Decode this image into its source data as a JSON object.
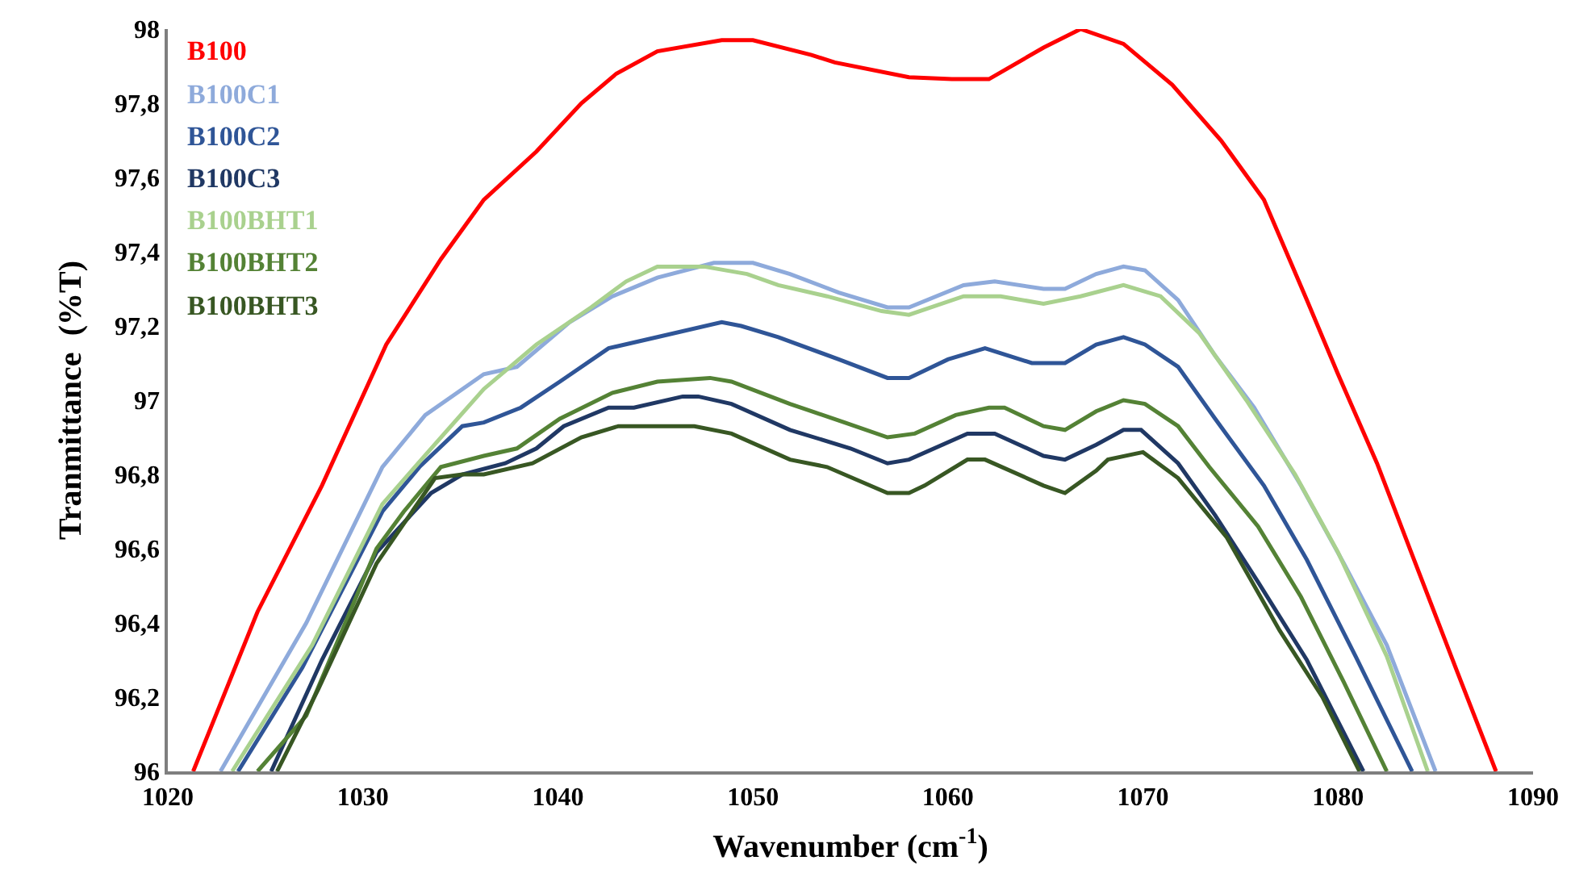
{
  "chart_data": {
    "type": "line",
    "xlabel": "Wavenumber (cm$^{-1}$)",
    "ylabel": "Tranmittance  (%T)",
    "xlim": [
      1020,
      1090
    ],
    "xticks": [
      1020,
      1030,
      1040,
      1050,
      1060,
      1070,
      1080,
      1090
    ],
    "ylim": [
      96,
      98
    ],
    "yticks": [
      96,
      {
        "value": 96.2,
        "label": "96,2"
      },
      {
        "value": 96.4,
        "label": "96,4"
      },
      {
        "value": 96.6,
        "label": "96,6"
      },
      {
        "value": 96.8,
        "label": "96,8"
      },
      97,
      {
        "value": 97.2,
        "label": "97,2"
      },
      {
        "value": 97.4,
        "label": "97,4"
      },
      {
        "value": 97.6,
        "label": "97,6"
      },
      {
        "value": 97.8,
        "label": "97,8"
      },
      98
    ],
    "grid": false,
    "legend": "top left",
    "marker": "none",
    "line_style": "solid",
    "series": [
      {
        "name": "B100",
        "color": "#ff0000",
        "x": [
          1021.3,
          1024.6,
          1027.9,
          1031.2,
          1034.0,
          1036.2,
          1038.9,
          1041.2,
          1043.0,
          1045.1,
          1048.4,
          1050.0,
          1053.0,
          1054.2,
          1058.0,
          1060.2,
          1062.1,
          1064.9,
          1066.8,
          1069.0,
          1071.5,
          1074.0,
          1076.2,
          1078.4,
          1080.0,
          1082.0,
          1083.9,
          1086.1,
          1088.1
        ],
        "values": [
          96.0,
          96.43,
          96.77,
          97.15,
          97.38,
          97.54,
          97.67,
          97.8,
          97.88,
          97.94,
          97.97,
          97.97,
          97.93,
          97.91,
          97.87,
          97.865,
          97.865,
          97.95,
          98.0,
          97.96,
          97.85,
          97.7,
          97.54,
          97.27,
          97.07,
          96.83,
          96.57,
          96.27,
          96.0
        ]
      },
      {
        "name": "B100C1",
        "color": "#8eaadb",
        "x": [
          1022.7,
          1027.1,
          1031.0,
          1033.2,
          1036.2,
          1037.9,
          1040.6,
          1042.8,
          1045.1,
          1048.0,
          1050.0,
          1051.9,
          1054.4,
          1056.9,
          1058.0,
          1060.8,
          1062.4,
          1064.9,
          1066.0,
          1067.6,
          1069.0,
          1070.1,
          1071.8,
          1073.7,
          1075.7,
          1078.1,
          1080.3,
          1082.5,
          1085.0
        ],
        "values": [
          96.0,
          96.4,
          96.82,
          96.96,
          97.07,
          97.09,
          97.21,
          97.28,
          97.33,
          97.37,
          97.37,
          97.34,
          97.29,
          97.25,
          97.25,
          97.31,
          97.32,
          97.3,
          97.3,
          97.34,
          97.36,
          97.35,
          97.27,
          97.12,
          96.98,
          96.77,
          96.56,
          96.34,
          96.0
        ]
      },
      {
        "name": "B100C2",
        "color": "#2f5597",
        "x": [
          1023.6,
          1026.9,
          1031.0,
          1032.9,
          1035.1,
          1036.2,
          1038.1,
          1040.1,
          1042.6,
          1045.1,
          1048.4,
          1049.4,
          1051.3,
          1054.4,
          1056.9,
          1058.0,
          1060.0,
          1061.9,
          1064.3,
          1066.0,
          1067.6,
          1069.0,
          1070.1,
          1071.8,
          1073.7,
          1076.2,
          1078.4,
          1080.9,
          1083.8
        ],
        "values": [
          96.0,
          96.28,
          96.7,
          96.82,
          96.93,
          96.94,
          96.98,
          97.05,
          97.14,
          97.17,
          97.21,
          97.2,
          97.17,
          97.11,
          97.06,
          97.06,
          97.11,
          97.14,
          97.1,
          97.1,
          97.15,
          97.17,
          97.15,
          97.09,
          96.95,
          96.77,
          96.57,
          96.31,
          96.0
        ]
      },
      {
        "name": "B100C3",
        "color": "#203864",
        "x": [
          1025.3,
          1027.9,
          1030.7,
          1033.5,
          1035.1,
          1037.3,
          1038.9,
          1040.3,
          1042.6,
          1043.9,
          1046.4,
          1047.2,
          1048.9,
          1051.9,
          1055.0,
          1056.9,
          1058.0,
          1061.0,
          1062.4,
          1064.9,
          1066.0,
          1067.6,
          1069.0,
          1069.9,
          1071.8,
          1073.7,
          1075.9,
          1078.4,
          1081.3
        ],
        "values": [
          96.0,
          96.3,
          96.59,
          96.75,
          96.8,
          96.83,
          96.87,
          96.93,
          96.98,
          96.98,
          97.01,
          97.01,
          96.99,
          96.92,
          96.87,
          96.83,
          96.84,
          96.91,
          96.91,
          96.85,
          96.84,
          96.88,
          96.92,
          96.92,
          96.83,
          96.69,
          96.51,
          96.3,
          96.0
        ]
      },
      {
        "name": "B100BHT1",
        "color": "#a9d18e",
        "x": [
          1023.3,
          1027.4,
          1031.0,
          1033.5,
          1036.2,
          1038.9,
          1041.7,
          1043.5,
          1045.1,
          1047.5,
          1049.7,
          1051.3,
          1053.8,
          1056.6,
          1058.0,
          1060.8,
          1062.7,
          1064.9,
          1066.8,
          1069.0,
          1070.9,
          1072.9,
          1075.3,
          1077.8,
          1080.0,
          1082.5,
          1084.6
        ],
        "values": [
          96.0,
          96.34,
          96.72,
          96.87,
          97.03,
          97.15,
          97.25,
          97.32,
          97.36,
          97.36,
          97.34,
          97.31,
          97.28,
          97.24,
          97.23,
          97.28,
          97.28,
          97.26,
          97.28,
          97.31,
          97.28,
          97.18,
          97.0,
          96.8,
          96.59,
          96.31,
          96.0
        ]
      },
      {
        "name": "B100BHT2",
        "color": "#548235",
        "x": [
          1024.6,
          1027.1,
          1030.7,
          1032.1,
          1034.0,
          1036.2,
          1037.9,
          1040.1,
          1042.8,
          1045.1,
          1047.8,
          1048.9,
          1051.9,
          1054.7,
          1056.9,
          1058.3,
          1060.4,
          1062.1,
          1062.9,
          1064.9,
          1066.0,
          1067.6,
          1069.0,
          1070.1,
          1071.8,
          1073.4,
          1075.9,
          1078.1,
          1080.3,
          1082.5
        ],
        "values": [
          96.0,
          96.15,
          96.6,
          96.7,
          96.82,
          96.85,
          96.87,
          96.95,
          97.02,
          97.05,
          97.06,
          97.05,
          96.99,
          96.94,
          96.9,
          96.91,
          96.96,
          96.98,
          96.98,
          96.93,
          96.92,
          96.97,
          97.0,
          96.99,
          96.93,
          96.82,
          96.66,
          96.47,
          96.24,
          96.0
        ]
      },
      {
        "name": "B100BHT3",
        "color": "#385723",
        "x": [
          1025.6,
          1027.7,
          1030.7,
          1033.7,
          1035.1,
          1036.2,
          1038.7,
          1041.2,
          1043.1,
          1047.0,
          1048.9,
          1051.9,
          1053.8,
          1056.9,
          1058.0,
          1058.8,
          1061.0,
          1061.9,
          1064.9,
          1066.0,
          1067.6,
          1068.2,
          1070.0,
          1071.8,
          1074.3,
          1077.0,
          1079.2,
          1081.1
        ],
        "values": [
          96.0,
          96.22,
          96.56,
          96.79,
          96.8,
          96.8,
          96.83,
          96.9,
          96.93,
          96.93,
          96.91,
          96.84,
          96.82,
          96.75,
          96.75,
          96.77,
          96.84,
          96.84,
          96.77,
          96.75,
          96.81,
          96.84,
          96.86,
          96.79,
          96.63,
          96.38,
          96.2,
          96.0
        ]
      }
    ]
  }
}
